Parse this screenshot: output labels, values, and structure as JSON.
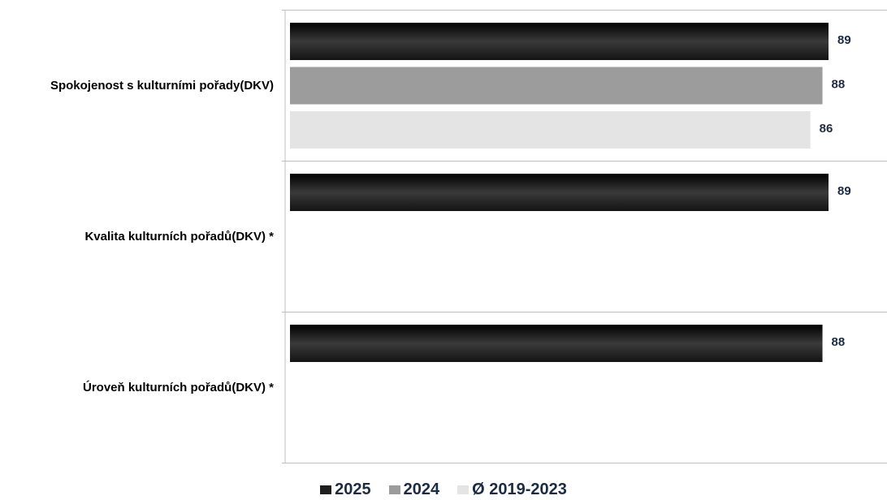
{
  "chart_data": {
    "type": "bar",
    "orientation": "horizontal",
    "categories": [
      "Spokojenost s kulturními pořady(DKV)",
      "Kvalita kulturních pořadů(DKV) *",
      "Úroveň kulturních pořadů(DKV) *"
    ],
    "series": [
      {
        "name": "2025",
        "values": [
          89,
          89,
          88
        ],
        "color": "#1e1e1e"
      },
      {
        "name": "2024",
        "values": [
          88,
          null,
          null
        ],
        "color": "#9c9c9c"
      },
      {
        "name": "Ø 2019-2023",
        "values": [
          86,
          null,
          null
        ],
        "color": "#e4e4e4"
      }
    ],
    "xlim": [
      0,
      95
    ],
    "grid": false,
    "legend_position": "bottom"
  }
}
